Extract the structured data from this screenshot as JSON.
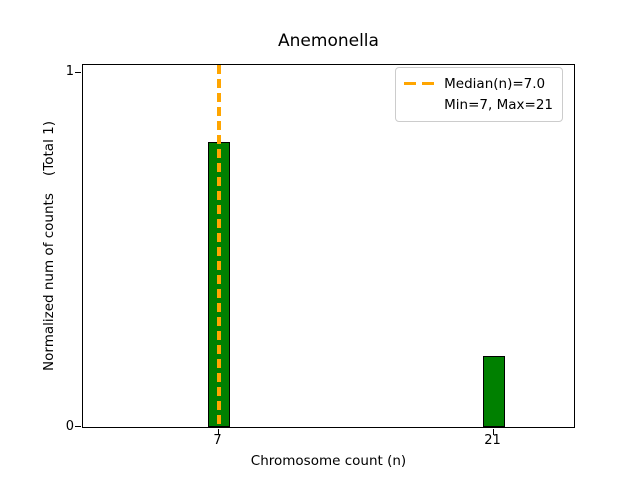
{
  "chart_data": {
    "type": "bar",
    "title": "Anemonella",
    "xlabel": "Chromosome count (n)",
    "ylabel": "Normalized num of counts    (Total 1)",
    "categories": [
      "7",
      "21"
    ],
    "values": [
      0.8,
      0.2
    ],
    "x_tick_labels": [
      "7",
      "21"
    ],
    "y_tick_labels": [
      "0",
      "1"
    ],
    "ylim": [
      0,
      1.02
    ],
    "grid": false,
    "bar_color": "#008000",
    "bar_edge_color": "#000000",
    "median_line": {
      "x": 7.0,
      "color": "#ffa500",
      "style": "dashed"
    },
    "legend": {
      "position": "upper right",
      "entries": [
        {
          "label": "Median(n)=7.0",
          "swatch": "orange-dashed-line"
        },
        {
          "label": "Min=7, Max=21",
          "swatch": "none"
        }
      ]
    },
    "stats": {
      "median_n": 7.0,
      "min_n": 7,
      "max_n": 21,
      "total": 1
    }
  }
}
